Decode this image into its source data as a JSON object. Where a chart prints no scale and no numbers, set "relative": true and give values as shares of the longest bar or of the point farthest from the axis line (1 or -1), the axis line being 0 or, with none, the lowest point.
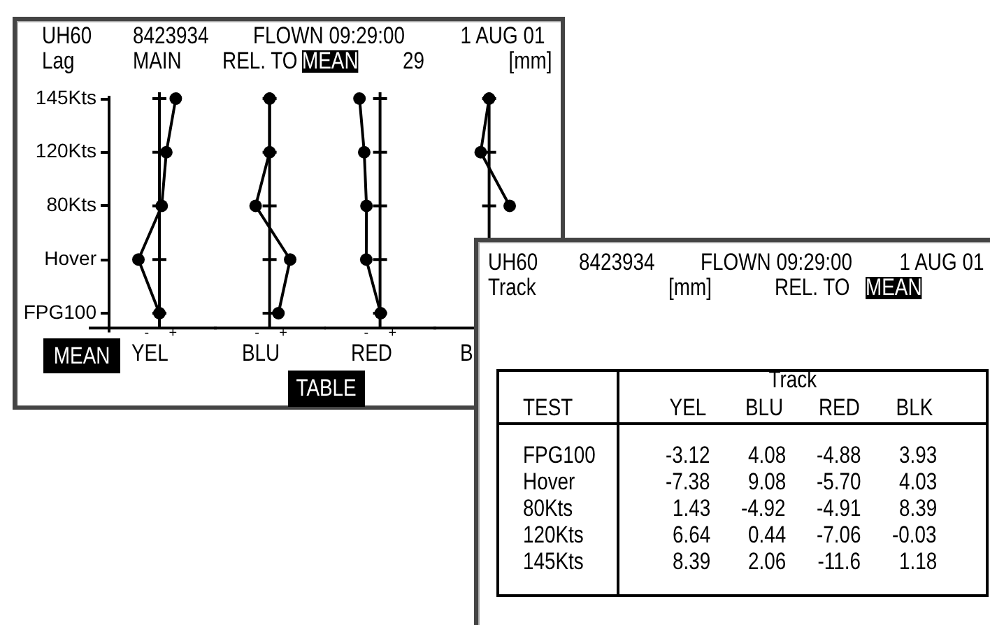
{
  "chart_data": [
    {
      "type": "other",
      "annotations": [
        "UH60",
        "8423934",
        "FLOWN 09:29:00",
        "1 AUG 01",
        "Lag",
        "MAIN",
        "REL. TO",
        "MEAN",
        "29",
        "[mm]",
        "MEAN",
        "TABLE"
      ]
    },
    {
      "type": "line",
      "orientation": "horizontal",
      "relative": true,
      "categories": [
        "145Kts",
        "120Kts",
        "80Kts",
        "Hover",
        "FPG100"
      ],
      "values": [
        0.78,
        0.33,
        0.11,
        -1,
        0
      ],
      "color": "#000000",
      "xlabel": "YEL",
      "annotations": [
        "-",
        "+"
      ],
      "marker": "circle",
      "line_style": "solid",
      "tick_labels": "y"
    },
    {
      "type": "line",
      "orientation": "horizontal",
      "relative": true,
      "categories": [
        null,
        null,
        null,
        null,
        null
      ],
      "values": [
        0,
        0,
        -0.68,
        1,
        0.43
      ],
      "color": "#000000",
      "xlabel": "BLU",
      "annotations": [
        "-",
        "+"
      ],
      "marker": "circle",
      "line_style": "solid",
      "tick_labels": false
    },
    {
      "type": "line",
      "orientation": "horizontal",
      "relative": true,
      "categories": [
        null,
        null,
        null,
        null,
        null
      ],
      "values": [
        -1,
        -0.77,
        -0.66,
        -0.67,
        0.03
      ],
      "color": "#000000",
      "xlabel": "RED",
      "annotations": [
        "-",
        "+"
      ],
      "marker": "circle",
      "line_style": "solid",
      "tick_labels": false
    },
    {
      "type": "line",
      "orientation": "horizontal",
      "relative": true,
      "categories": [
        null,
        null,
        null,
        null,
        null
      ],
      "values": [
        0,
        -0.41,
        1,
        null,
        null
      ],
      "color": "#000000",
      "xlabel": "B",
      "marker": "circle",
      "line_style": "solid",
      "tick_labels": false
    },
    {
      "type": "other",
      "annotations": [
        "UH60",
        "8423934",
        "FLOWN 09:29:00",
        "1 AUG 01",
        "Track",
        "[mm]",
        "REL. TO",
        "MEAN"
      ],
      "legend_title": "Track",
      "xlabel": "TEST",
      "categories": [
        "FPG100",
        "Hover",
        "80Kts",
        "120Kts",
        "145Kts"
      ],
      "series": [
        {
          "name": "YEL",
          "values": [
            -3.12,
            -7.38,
            1.43,
            6.64,
            8.39
          ],
          "value_labels": [
            "-3.12",
            "-7.38",
            "1.43",
            "6.64",
            "8.39"
          ]
        },
        {
          "name": "BLU",
          "values": [
            4.08,
            9.08,
            -4.92,
            0.44,
            2.06
          ],
          "value_labels": [
            "4.08",
            "9.08",
            "-4.92",
            "0.44",
            "2.06"
          ]
        },
        {
          "name": "RED",
          "values": [
            -4.88,
            -5.7,
            -4.91,
            -7.06,
            -11.6
          ],
          "value_labels": [
            "-4.88",
            "-5.70",
            "-4.91",
            "-7.06",
            "-11.6"
          ]
        },
        {
          "name": "BLK",
          "values": [
            3.93,
            4.03,
            8.39,
            -0.03,
            1.18
          ],
          "value_labels": [
            "3.93",
            "4.03",
            "8.39",
            "-0.03",
            "1.18"
          ]
        }
      ]
    }
  ]
}
